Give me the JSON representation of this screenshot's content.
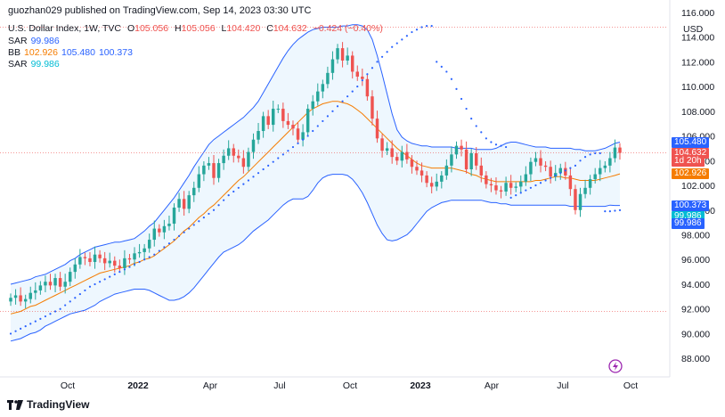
{
  "header": {
    "publisher": "guozhan029 published on TradingView.com, Sep 14, 2023 03:30 UTC"
  },
  "legend": {
    "title": "U.S. Dollar Index, 1W, TVC",
    "ohlc": {
      "o_label": "O",
      "o": "105.056",
      "h_label": "H",
      "h": "105.056",
      "l_label": "L",
      "l": "104.420",
      "c_label": "C",
      "c": "104.632",
      "chg": "−0.424 (−0.40%)"
    },
    "sar1": {
      "label": "SAR",
      "value": "99.986"
    },
    "bb": {
      "label": "BB",
      "basis": "102.926",
      "upper": "105.480",
      "lower": "100.373"
    },
    "sar2": {
      "label": "SAR",
      "value": "99.986"
    }
  },
  "footer": {
    "brand": "TradingView"
  },
  "colors": {
    "up": "#26a69a",
    "down": "#ef5350",
    "bb_basis": "#f57c00",
    "bb_band": "#2962ff",
    "bb_fill": "#e3f2fd",
    "sar": "#2962ff",
    "sar_badge": "#00bcd4"
  },
  "badges": [
    {
      "value": "105.480",
      "color": "#2962ff"
    },
    {
      "value": "104.632",
      "color": "#ef5350"
    },
    {
      "value": "1d 20h",
      "color": "#ef5350"
    },
    {
      "value": "102.926",
      "color": "#f57c00"
    },
    {
      "value": "100.373",
      "color": "#2962ff"
    },
    {
      "value": "99.986",
      "color": "#00bcd4"
    },
    {
      "value": "99.986",
      "color": "#2962ff"
    }
  ],
  "chart_data": {
    "type": "candlestick",
    "y_unit": "USD",
    "ylim": [
      86.5,
      117.0
    ],
    "y_ticks": [
      88,
      90,
      92,
      94,
      96,
      98,
      100,
      102,
      104,
      106,
      108,
      110,
      112,
      114,
      116
    ],
    "x_labels": [
      "Oct",
      "2022",
      "Apr",
      "Jul",
      "Oct",
      "2023",
      "Apr",
      "Jul",
      "Oct"
    ],
    "reference_lines": [
      114.8,
      104.632,
      91.8
    ],
    "closes": [
      92.9,
      93.1,
      92.6,
      92.8,
      93.3,
      93.5,
      93.9,
      94.2,
      93.9,
      94.5,
      93.8,
      94.2,
      95.0,
      95.6,
      96.2,
      96.1,
      95.8,
      96.4,
      96.1,
      95.7,
      95.9,
      95.5,
      95.3,
      96.1,
      96.0,
      96.5,
      96.6,
      96.9,
      97.6,
      98.5,
      98.2,
      98.7,
      98.9,
      100.2,
      100.9,
      100.1,
      101.2,
      101.8,
      102.9,
      103.6,
      103.8,
      102.6,
      103.8,
      104.4,
      105.0,
      104.4,
      104.2,
      103.5,
      104.7,
      105.7,
      106.4,
      107.6,
      106.9,
      108.2,
      108.2,
      107.2,
      106.9,
      106.6,
      105.7,
      106.3,
      108.2,
      108.8,
      109.6,
      110.2,
      111.1,
      112.2,
      113.1,
      112.1,
      112.5,
      111.2,
      110.8,
      110.6,
      109.2,
      107.4,
      105.8,
      104.8,
      105.0,
      104.3,
      104.0,
      104.7,
      104.1,
      103.5,
      103.2,
      102.8,
      102.2,
      101.9,
      102.3,
      102.8,
      103.6,
      104.5,
      105.2,
      104.9,
      103.3,
      104.6,
      103.6,
      102.8,
      102.1,
      102.0,
      101.6,
      101.5,
      102.2,
      101.8,
      101.9,
      102.3,
      102.9,
      103.9,
      104.2,
      103.6,
      103.5,
      102.7,
      103.0,
      103.4,
      102.8,
      101.7,
      100.0,
      101.3,
      101.8,
      102.5,
      102.9,
      103.4,
      103.6,
      104.2,
      105.06,
      104.63
    ],
    "bb_basis": [
      91.6,
      91.7,
      91.8,
      92.0,
      92.2,
      92.3,
      92.5,
      92.7,
      92.9,
      93.1,
      93.3,
      93.5,
      93.7,
      93.9,
      94.1,
      94.3,
      94.5,
      94.7,
      94.9,
      95.0,
      95.1,
      95.2,
      95.3,
      95.4,
      95.5,
      95.7,
      95.8,
      96.0,
      96.1,
      96.3,
      96.6,
      96.9,
      97.2,
      97.5,
      97.9,
      98.3,
      98.6,
      99.0,
      99.4,
      99.7,
      100.1,
      100.4,
      100.8,
      101.2,
      101.6,
      102.0,
      102.4,
      102.7,
      103.1,
      103.5,
      103.9,
      104.3,
      104.7,
      105.1,
      105.5,
      105.9,
      106.3,
      106.7,
      107.1,
      107.5,
      107.9,
      108.2,
      108.4,
      108.6,
      108.7,
      108.8,
      108.8,
      108.7,
      108.6,
      108.4,
      108.1,
      107.8,
      107.4,
      107.0,
      106.6,
      106.2,
      105.8,
      105.4,
      105.0,
      104.7,
      104.4,
      104.1,
      103.8,
      103.6,
      103.5,
      103.4,
      103.4,
      103.4,
      103.4,
      103.4,
      103.3,
      103.2,
      103.1,
      102.9,
      102.8,
      102.6,
      102.5,
      102.4,
      102.3,
      102.3,
      102.3,
      102.3,
      102.3,
      102.3,
      102.3,
      102.3,
      102.4,
      102.4,
      102.5,
      102.6,
      102.7,
      102.7,
      102.6,
      102.6,
      102.5,
      102.4,
      102.4,
      102.4,
      102.4,
      102.5,
      102.6,
      102.7,
      102.8,
      102.93
    ],
    "bb_upper": [
      94.0,
      94.1,
      94.2,
      94.3,
      94.4,
      94.6,
      94.7,
      94.8,
      95.0,
      95.2,
      95.4,
      95.6,
      95.9,
      96.1,
      96.4,
      96.6,
      96.8,
      97.0,
      97.1,
      97.2,
      97.3,
      97.4,
      97.4,
      97.5,
      97.6,
      97.7,
      98.0,
      98.3,
      98.7,
      99.0,
      99.5,
      100.0,
      100.5,
      101.0,
      101.6,
      102.2,
      102.8,
      103.5,
      104.1,
      104.7,
      105.3,
      105.7,
      106.0,
      106.3,
      106.6,
      106.9,
      107.2,
      107.5,
      107.9,
      108.3,
      108.8,
      109.5,
      110.2,
      110.9,
      111.6,
      112.3,
      112.9,
      113.4,
      113.8,
      114.1,
      114.4,
      114.6,
      114.7,
      114.8,
      114.8,
      114.8,
      114.8,
      114.9,
      114.9,
      115.0,
      115.0,
      114.9,
      114.6,
      113.8,
      112.5,
      111.0,
      109.4,
      107.8,
      106.5,
      105.9,
      105.6,
      105.4,
      105.3,
      105.2,
      105.2,
      105.1,
      105.1,
      105.1,
      105.1,
      105.1,
      105.0,
      105.0,
      105.0,
      105.0,
      104.9,
      104.9,
      104.9,
      104.9,
      105.0,
      105.2,
      105.4,
      105.5,
      105.5,
      105.4,
      105.3,
      105.2,
      105.1,
      105.1,
      105.1,
      105.0,
      105.0,
      105.0,
      105.0,
      105.0,
      104.9,
      104.9,
      104.8,
      104.8,
      104.8,
      104.9,
      105.0,
      105.2,
      105.4,
      105.5
    ],
    "bb_lower": [
      89.4,
      89.5,
      89.6,
      89.8,
      90.0,
      90.1,
      90.3,
      90.6,
      90.8,
      91.0,
      91.2,
      91.4,
      91.6,
      91.7,
      91.8,
      91.9,
      92.1,
      92.3,
      92.6,
      92.8,
      93.0,
      93.2,
      93.3,
      93.4,
      93.5,
      93.6,
      93.6,
      93.6,
      93.5,
      93.3,
      93.1,
      92.9,
      92.7,
      92.7,
      92.8,
      93.0,
      93.3,
      93.7,
      94.2,
      94.7,
      95.2,
      95.7,
      96.2,
      96.6,
      96.8,
      97.0,
      97.2,
      97.5,
      97.9,
      98.3,
      98.6,
      98.9,
      99.2,
      99.6,
      100.0,
      100.4,
      100.7,
      100.9,
      100.9,
      100.9,
      101.1,
      101.6,
      102.2,
      102.6,
      102.8,
      102.9,
      102.9,
      102.9,
      102.8,
      102.5,
      102.0,
      101.4,
      100.6,
      99.7,
      98.8,
      98.1,
      97.6,
      97.5,
      97.6,
      97.8,
      98.0,
      98.4,
      98.9,
      99.4,
      99.9,
      100.2,
      100.4,
      100.6,
      100.7,
      100.8,
      100.8,
      100.8,
      100.8,
      100.8,
      100.8,
      100.8,
      100.7,
      100.6,
      100.6,
      100.5,
      100.5,
      100.4,
      100.4,
      100.4,
      100.4,
      100.4,
      100.4,
      100.4,
      100.4,
      100.4,
      100.4,
      100.4,
      100.4,
      100.3,
      100.3,
      100.3,
      100.3,
      100.3,
      100.3,
      100.3,
      100.3,
      100.4,
      100.37,
      100.37
    ],
    "sar": [
      90.0,
      90.2,
      90.4,
      90.6,
      90.8,
      91.0,
      91.2,
      91.4,
      91.6,
      91.8,
      92.0,
      92.3,
      92.6,
      92.9,
      93.2,
      93.5,
      93.8,
      94.0,
      94.2,
      94.4,
      94.6,
      94.8,
      95.0,
      95.2,
      95.4,
      95.6,
      95.8,
      96.0,
      96.2,
      96.4,
      96.7,
      97.0,
      97.3,
      97.6,
      97.9,
      98.2,
      98.5,
      98.8,
      99.1,
      99.4,
      99.7,
      100.0,
      100.4,
      100.8,
      101.2,
      101.5,
      101.8,
      102.1,
      102.4,
      102.7,
      103.0,
      103.3,
      103.6,
      103.9,
      104.2,
      104.5,
      104.8,
      105.1,
      105.4,
      105.7,
      106.0,
      106.4,
      106.8,
      107.2,
      107.6,
      108.0,
      108.4,
      108.8,
      109.2,
      109.6,
      110.0,
      110.5,
      111.0,
      111.5,
      112.0,
      112.4,
      112.8,
      113.2,
      113.5,
      113.8,
      114.1,
      114.4,
      114.6,
      114.8,
      114.9,
      114.9,
      112.0,
      111.6,
      111.2,
      110.6,
      109.8,
      109.0,
      108.2,
      107.4,
      106.8,
      106.3,
      105.8,
      105.5,
      105.3,
      105.2,
      105.1,
      101.0,
      101.2,
      101.4,
      101.6,
      101.8,
      102.0,
      102.2,
      102.4,
      102.6,
      102.8,
      103.0,
      103.2,
      103.4,
      103.6,
      104.0,
      104.3,
      104.5,
      104.6,
      104.6,
      99.9,
      99.9,
      99.95,
      99.99
    ],
    "sar_mode": [
      1,
      1,
      1,
      1,
      1,
      1,
      1,
      1,
      1,
      1,
      1,
      1,
      1,
      1,
      1,
      1,
      1,
      1,
      1,
      1,
      1,
      1,
      1,
      1,
      1,
      1,
      1,
      1,
      1,
      1,
      1,
      1,
      1,
      1,
      1,
      1,
      1,
      1,
      1,
      1,
      1,
      1,
      1,
      1,
      1,
      1,
      1,
      1,
      1,
      1,
      1,
      1,
      1,
      1,
      1,
      1,
      1,
      1,
      1,
      1,
      1,
      1,
      1,
      1,
      1,
      1,
      1,
      1,
      1,
      1,
      0,
      0,
      0,
      0,
      0,
      0,
      0,
      0,
      0,
      0,
      0,
      0,
      0,
      0,
      0,
      0,
      0,
      0,
      0,
      0,
      0,
      0,
      0,
      0,
      0,
      0,
      0,
      0,
      0,
      0,
      0,
      1,
      1,
      1,
      1,
      1,
      1,
      1,
      1,
      0,
      0,
      0,
      0,
      0,
      0,
      0,
      0,
      0,
      0,
      0,
      1,
      1,
      1,
      1
    ]
  }
}
